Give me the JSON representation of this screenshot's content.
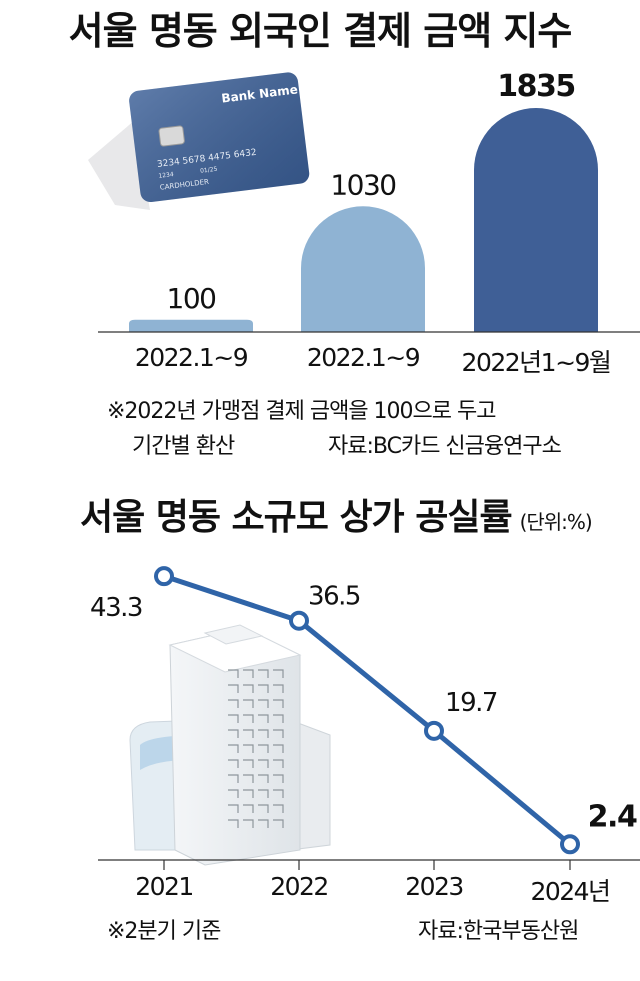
{
  "chart_data": [
    {
      "type": "bar",
      "title": "서울 명동 외국인 결제 금액 지수",
      "categories": [
        "2022.1~9",
        "2022.1~9",
        "2022년1~9월"
      ],
      "values": [
        100,
        1030,
        1835
      ],
      "colors": [
        "#8fb3d3",
        "#8fb3d3",
        "#3f5f96"
      ],
      "notes": [
        "※2022년 가맹점 결제 금액을 100으로 두고",
        "기간별 환산",
        "자료:BC카드 신금융연구소"
      ],
      "card": {
        "bank_name": "Bank Name",
        "number": "3234 5678 4475 6432",
        "small_number": "1234",
        "expiry": "01/25",
        "holder": "CARDHOLDER"
      }
    },
    {
      "type": "line",
      "title": "서울 명동 소규모 상가 공실률",
      "unit": "(단위:%)",
      "x": [
        "2021",
        "2022",
        "2023",
        "2024년"
      ],
      "y": [
        43.3,
        36.5,
        19.7,
        2.4
      ],
      "labels": [
        "43.3",
        "36.5",
        "19.7",
        "2.4"
      ],
      "line_color": "#2f64a8",
      "notes": [
        "※2분기 기준",
        "자료:한국부동산원"
      ]
    }
  ]
}
